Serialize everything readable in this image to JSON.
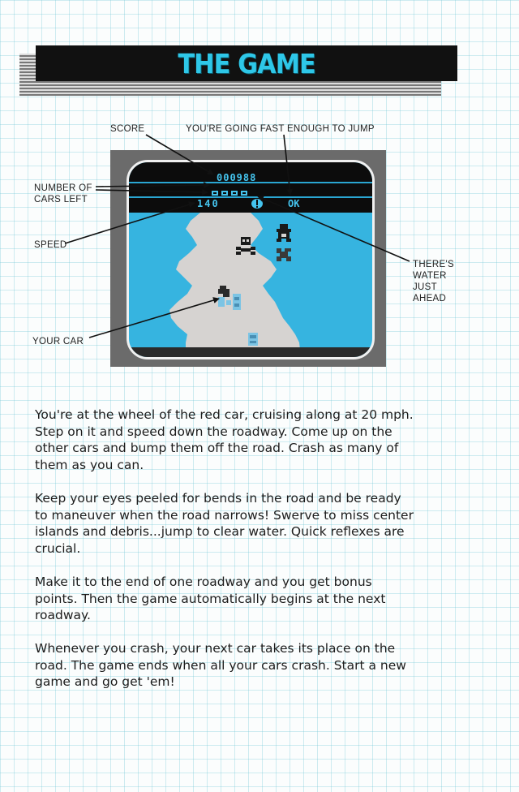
{
  "title": "THE GAME",
  "labels": {
    "score": "SCORE",
    "jump": "YOU'RE GOING FAST ENOUGH TO JUMP",
    "cars_left": [
      "NUMBER OF",
      "CARS LEFT"
    ],
    "speed": "SPEED",
    "water": [
      "THERE'S",
      "WATER",
      "JUST",
      "AHEAD"
    ],
    "your_car": "YOUR CAR"
  },
  "screen": {
    "score": "000988",
    "speed": "140",
    "jump_indicator": "OK"
  },
  "paragraphs": [
    [
      "You're at the wheel of the red car, cruising along at 20 mph.",
      "Step on it and speed down the roadway. Come up on the",
      "other cars and bump them off the road. Crash as many of",
      "them as you can."
    ],
    [
      "Keep your eyes peeled for bends in the road and be ready",
      "to maneuver when the road narrows! Swerve to miss center",
      "islands and debris...jump to clear water. Quick reflexes are",
      "crucial."
    ],
    [
      "Make it to the end of one roadway and you get bonus",
      "points. Then the game automatically begins at the next",
      "roadway."
    ],
    [
      "Whenever you crash, your next car takes its place on the",
      "road. The game ends when all your cars crash. Start a new",
      "game and go get 'em!"
    ]
  ],
  "colors": {
    "title": "#2ec7e8",
    "water": "#36b4e0",
    "road": "#d6d3d1",
    "hud_text": "#45c4ee"
  }
}
